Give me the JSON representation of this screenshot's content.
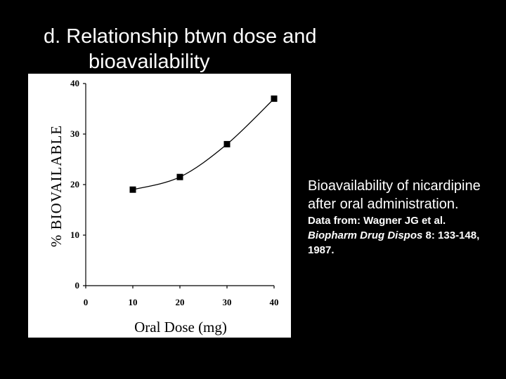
{
  "title": {
    "line1": "d. Relationship btwn dose and",
    "line2": "bioavailability"
  },
  "caption": {
    "main": "Bioavailability of nicardipine after oral administration.",
    "data_prefix": "Data from: Wagner JG et al.",
    "journal": "Biopharm Drug Dispos",
    "reference": "8: 133-148, 1987."
  },
  "chart_data": {
    "type": "line",
    "xlabel": "Oral Dose (mg)",
    "ylabel": "% BIOVAILABLE",
    "xlim": [
      0,
      40
    ],
    "ylim": [
      0,
      40
    ],
    "xticks": [
      0,
      10,
      20,
      30,
      40
    ],
    "yticks": [
      0,
      10,
      20,
      30,
      40
    ],
    "x": [
      10,
      20,
      30,
      40
    ],
    "y": [
      19,
      21.5,
      28,
      37
    ],
    "marker": "square",
    "grid": false,
    "color": "#000000"
  }
}
